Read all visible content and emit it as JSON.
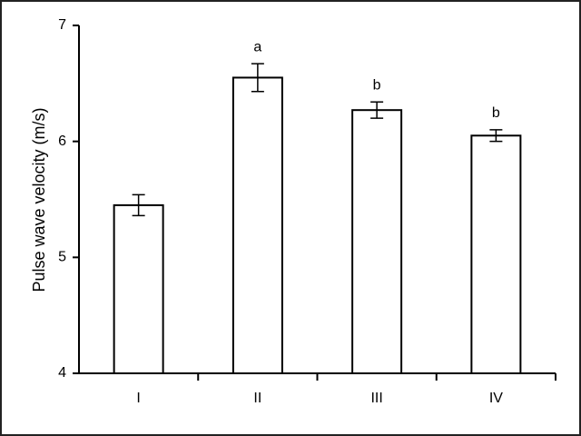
{
  "chart_data": {
    "type": "bar",
    "categories": [
      "I",
      "II",
      "III",
      "IV"
    ],
    "values": [
      5.45,
      6.55,
      6.27,
      6.05
    ],
    "errors": [
      0.09,
      0.12,
      0.07,
      0.05
    ],
    "annotations": [
      null,
      "a",
      "b",
      "b"
    ],
    "color": "#ffffff",
    "ylabel": "Pulse wave velocity (m/s)",
    "ylim": [
      4,
      7
    ],
    "yticks": [
      4,
      5,
      6,
      7
    ],
    "grid": false
  }
}
